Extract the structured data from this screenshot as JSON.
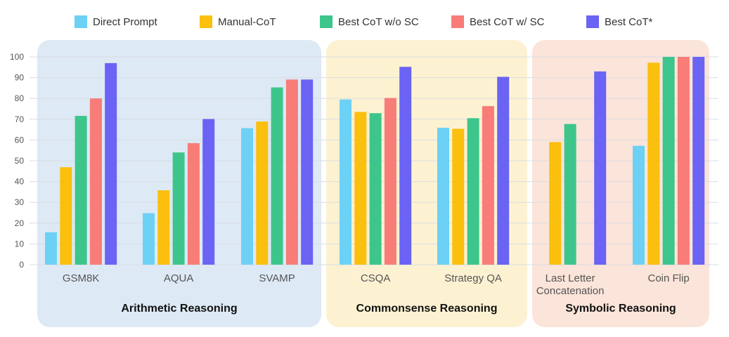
{
  "chart_data": {
    "type": "bar",
    "title": "",
    "xlabel": "",
    "ylabel": "",
    "ylim": [
      0,
      100
    ],
    "yticks": [
      0,
      10,
      20,
      30,
      40,
      50,
      60,
      70,
      80,
      90,
      100
    ],
    "grid": true,
    "legend_position": "top",
    "categories": [
      "GSM8K",
      "AQUA",
      "SVAMP",
      "CSQA",
      "Strategy QA",
      "Last Letter Concatenation",
      "Coin Flip"
    ],
    "category_lines": [
      [
        "GSM8K"
      ],
      [
        "AQUA"
      ],
      [
        "SVAMP"
      ],
      [
        "CSQA"
      ],
      [
        "Strategy QA"
      ],
      [
        "Last Letter",
        "Concatenation"
      ],
      [
        "Coin Flip"
      ]
    ],
    "groups": [
      {
        "name": "Arithmetic Reasoning",
        "categories": [
          "GSM8K",
          "AQUA",
          "SVAMP"
        ],
        "color": "#dde9f5"
      },
      {
        "name": "Commonsense Reasoning",
        "categories": [
          "CSQA",
          "Strategy QA"
        ],
        "color": "#fcf2d2"
      },
      {
        "name": "Symbolic Reasoning",
        "categories": [
          "Last Letter Concatenation",
          "Coin Flip"
        ],
        "color": "#fbe4d9"
      }
    ],
    "series": [
      {
        "name": "Direct Prompt",
        "color": "#6cd1f4",
        "values": [
          15.6,
          24.8,
          65.7,
          79.5,
          65.9,
          null,
          57.2
        ]
      },
      {
        "name": "Manual-CoT",
        "color": "#fbbf0d",
        "values": [
          46.9,
          35.8,
          68.9,
          73.5,
          65.4,
          59.0,
          97.2
        ]
      },
      {
        "name": "Best CoT w/o SC",
        "color": "#3dc58c",
        "values": [
          71.6,
          54.0,
          85.3,
          72.9,
          70.5,
          67.7,
          100
        ]
      },
      {
        "name": "Best CoT w/ SC",
        "color": "#f87c78",
        "values": [
          80.0,
          58.5,
          89.1,
          80.2,
          76.3,
          null,
          100
        ]
      },
      {
        "name": "Best CoT*",
        "color": "#6a63f4",
        "values": [
          97.0,
          70.1,
          89.1,
          95.2,
          90.4,
          93.0,
          100
        ]
      }
    ]
  }
}
